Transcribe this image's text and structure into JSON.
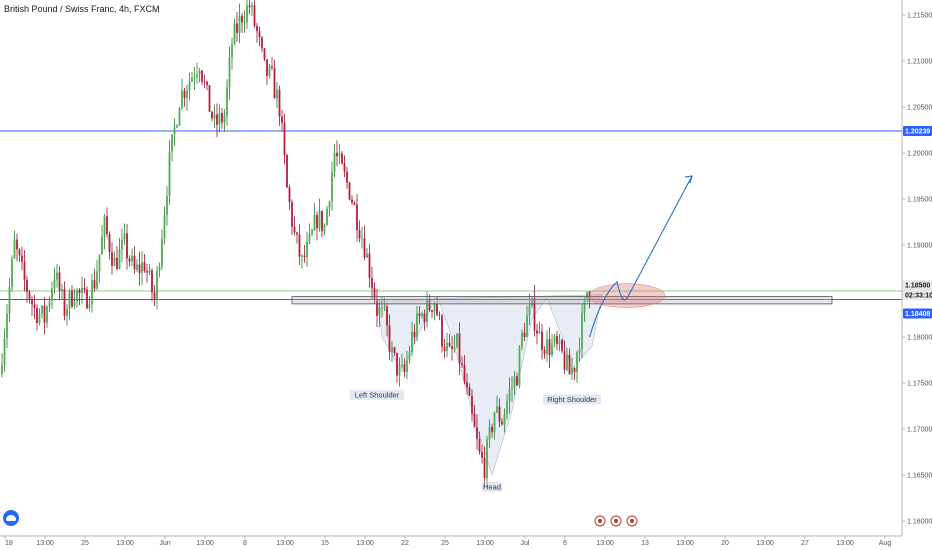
{
  "header": {
    "title": "British Pound / Swiss Franc, 4h, FXCM"
  },
  "colors": {
    "up": "#26a69a",
    "up_body": "#4caf50",
    "down": "#c2185b",
    "down_body": "#b71c3c",
    "resistance": "#2962ff",
    "support_line": "#66bb6a",
    "zone": "#d05050",
    "arrow": "#1e64c8"
  },
  "chart_data": {
    "type": "candlestick",
    "symbol": "British Pound / Swiss Franc",
    "timeframe": "4h",
    "source": "FXCM",
    "ylim": [
      1.159,
      1.2175
    ],
    "y_ticks": [
      "1.21500",
      "1.21000",
      "1.20500",
      "1.20000",
      "1.19500",
      "1.19000",
      "1.18500",
      "1.18000",
      "1.17500",
      "1.17000",
      "1.16500",
      "1.16000"
    ],
    "x_ticks": [
      "18",
      "13:00",
      "25",
      "13:00",
      "Jun",
      "13:00",
      "8",
      "13:00",
      "15",
      "13:00",
      "22",
      "25",
      "13:00",
      "Jul",
      "6",
      "13:00",
      "13",
      "13:00",
      "20",
      "13:00",
      "27",
      "13:00",
      "Aug"
    ],
    "price_badges": [
      {
        "value": "1.20239",
        "color": "#2962ff"
      },
      {
        "value": "1.18500",
        "color": "#e8e8e8",
        "text_color": "#131722"
      },
      {
        "value": "02:33:10",
        "color": "#e8e8e8",
        "text_color": "#131722"
      },
      {
        "value": "1.18408",
        "color": "#2962ff"
      }
    ],
    "horizontal_lines": [
      {
        "name": "resistance",
        "price": 1.20239
      },
      {
        "name": "neckline-support",
        "price": 1.18408
      },
      {
        "name": "current-price",
        "price": 1.185
      }
    ],
    "neckline_zone": {
      "price_top": 1.1844,
      "price_bottom": 1.1836,
      "start_candle": 116,
      "end_candle": 332
    },
    "annotations": [
      {
        "label": "Left Shoulder",
        "candle": 150,
        "price": 1.1735
      },
      {
        "label": "Head",
        "candle": 196,
        "price": 1.1635
      },
      {
        "label": "Right Shoulder",
        "candle": 228,
        "price": 1.173
      }
    ],
    "pattern": "inverse head and shoulders",
    "anchors": [
      [
        0,
        1.176
      ],
      [
        3,
        1.183
      ],
      [
        6,
        1.19
      ],
      [
        10,
        1.186
      ],
      [
        14,
        1.183
      ],
      [
        18,
        1.182
      ],
      [
        22,
        1.187
      ],
      [
        26,
        1.183
      ],
      [
        30,
        1.185
      ],
      [
        34,
        1.184
      ],
      [
        38,
        1.186
      ],
      [
        42,
        1.192
      ],
      [
        46,
        1.188
      ],
      [
        50,
        1.19
      ],
      [
        54,
        1.187
      ],
      [
        58,
        1.188
      ],
      [
        62,
        1.184
      ],
      [
        64,
        1.189
      ],
      [
        68,
        1.199
      ],
      [
        72,
        1.206
      ],
      [
        76,
        1.208
      ],
      [
        80,
        1.21
      ],
      [
        83,
        1.206
      ],
      [
        86,
        1.203
      ],
      [
        90,
        1.204
      ],
      [
        93,
        1.212
      ],
      [
        97,
        1.215
      ],
      [
        100,
        1.216
      ],
      [
        103,
        1.213
      ],
      [
        106,
        1.209
      ],
      [
        109,
        1.208
      ],
      [
        112,
        1.205
      ],
      [
        115,
        1.196
      ],
      [
        118,
        1.191
      ],
      [
        121,
        1.188
      ],
      [
        124,
        1.19
      ],
      [
        127,
        1.193
      ],
      [
        130,
        1.192
      ],
      [
        134,
        1.2
      ],
      [
        137,
        1.198
      ],
      [
        140,
        1.196
      ],
      [
        143,
        1.193
      ],
      [
        146,
        1.19
      ],
      [
        149,
        1.186
      ],
      [
        151,
        1.183
      ],
      [
        154,
        1.182
      ],
      [
        157,
        1.178
      ],
      [
        160,
        1.176
      ],
      [
        162,
        1.176
      ],
      [
        165,
        1.18
      ],
      [
        168,
        1.182
      ],
      [
        171,
        1.183
      ],
      [
        174,
        1.184
      ],
      [
        177,
        1.18
      ],
      [
        180,
        1.178
      ],
      [
        183,
        1.179
      ],
      [
        186,
        1.175
      ],
      [
        189,
        1.171
      ],
      [
        192,
        1.167
      ],
      [
        194,
        1.166
      ],
      [
        196,
        1.169
      ],
      [
        198,
        1.172
      ],
      [
        201,
        1.171
      ],
      [
        204,
        1.174
      ],
      [
        207,
        1.176
      ],
      [
        209,
        1.18
      ],
      [
        211,
        1.182
      ],
      [
        213,
        1.183
      ],
      [
        216,
        1.18
      ],
      [
        219,
        1.179
      ],
      [
        222,
        1.179
      ],
      [
        225,
        1.178
      ],
      [
        228,
        1.176
      ],
      [
        230,
        1.177
      ],
      [
        232,
        1.18
      ],
      [
        234,
        1.183
      ],
      [
        235,
        1.185
      ]
    ],
    "forecast_path": [
      [
        235,
        1.18
      ],
      [
        240,
        1.1845
      ],
      [
        246,
        1.186
      ],
      [
        250,
        1.1842
      ],
      [
        262,
        1.191
      ],
      [
        276,
        1.1975
      ]
    ]
  }
}
